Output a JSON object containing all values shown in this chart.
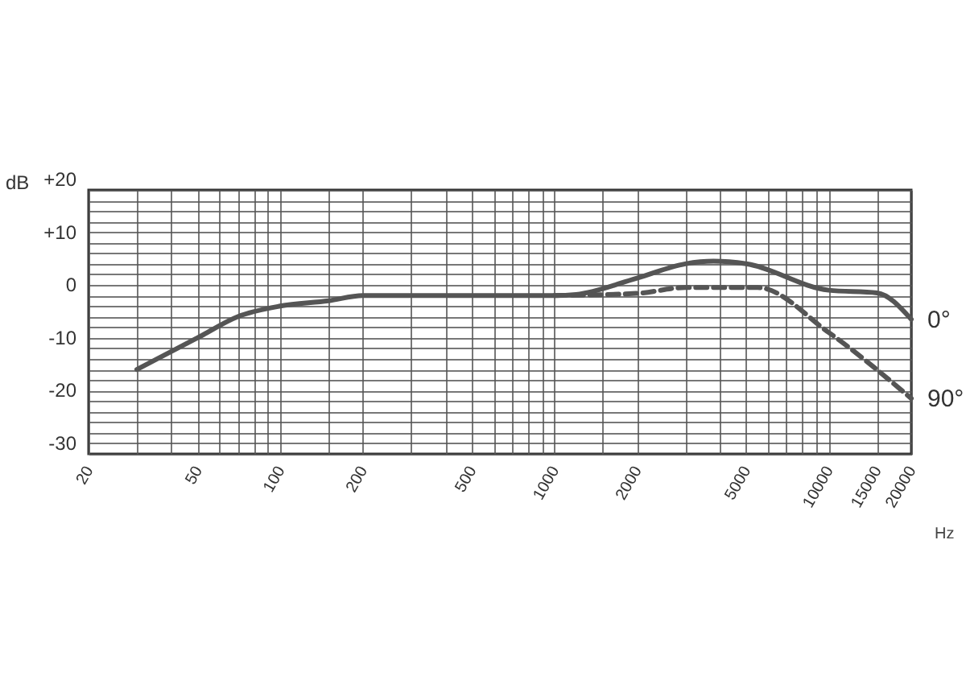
{
  "chart_data": {
    "type": "line",
    "xlabel": "Hz",
    "ylabel": "dB",
    "log": "x",
    "grid": true,
    "legend": false,
    "xlim": [
      20,
      20000
    ],
    "ylim": [
      -30,
      20
    ],
    "xticks": [
      20,
      {
        "value": 30,
        "label": null
      },
      {
        "value": 40,
        "label": null
      },
      50,
      {
        "value": 60,
        "label": null
      },
      {
        "value": 70,
        "label": null
      },
      {
        "value": 80,
        "label": null
      },
      {
        "value": 90,
        "label": null
      },
      100,
      {
        "value": 150,
        "label": null
      },
      200,
      {
        "value": 300,
        "label": null
      },
      {
        "value": 400,
        "label": null
      },
      500,
      {
        "value": 600,
        "label": null
      },
      {
        "value": 700,
        "label": null
      },
      {
        "value": 800,
        "label": null
      },
      {
        "value": 900,
        "label": null
      },
      1000,
      {
        "value": 1500,
        "label": null
      },
      2000,
      {
        "value": 3000,
        "label": null
      },
      {
        "value": 4000,
        "label": null
      },
      5000,
      {
        "value": 6000,
        "label": null
      },
      {
        "value": 7000,
        "label": null
      },
      {
        "value": 8000,
        "label": null
      },
      {
        "value": 9000,
        "label": null
      },
      10000,
      15000,
      20000
    ],
    "yticks": [
      -30,
      {
        "value": -28,
        "label": null
      },
      {
        "value": -26,
        "label": null
      },
      {
        "value": -24,
        "label": null
      },
      {
        "value": -22,
        "label": null
      },
      -20,
      {
        "value": -18,
        "label": null
      },
      {
        "value": -16,
        "label": null
      },
      {
        "value": -14,
        "label": null
      },
      {
        "value": -12,
        "label": null
      },
      -10,
      {
        "value": -8,
        "label": null
      },
      {
        "value": -6,
        "label": null
      },
      {
        "value": -4,
        "label": null
      },
      {
        "value": -2,
        "label": null
      },
      0,
      {
        "value": 2,
        "label": null
      },
      {
        "value": 4,
        "label": null
      },
      {
        "value": 6,
        "label": null
      },
      {
        "value": 8,
        "label": null
      },
      {
        "value": 10,
        "label": "+10"
      },
      {
        "value": 12,
        "label": null
      },
      {
        "value": 14,
        "label": null
      },
      {
        "value": 16,
        "label": null
      },
      {
        "value": 18,
        "label": null
      },
      {
        "value": 20,
        "label": "+20"
      }
    ],
    "series": [
      {
        "name": "0°",
        "color": "#555555",
        "line_style": "solid",
        "x": [
          30,
          50,
          70,
          100,
          150,
          200,
          1000,
          1200,
          2000,
          3000,
          3800,
          5000,
          10000,
          15000,
          20000
        ],
        "values": [
          -14,
          -8,
          -4,
          -2,
          -1,
          0,
          0,
          0.2,
          3.3,
          6,
          6.5,
          6,
          1,
          0.5,
          -4.5
        ]
      },
      {
        "name": "90°",
        "color": "#555555",
        "line_style": "dashed",
        "x": [
          1000,
          2000,
          3000,
          5000,
          5500,
          10000,
          20000
        ],
        "values": [
          0,
          0.4,
          1.5,
          1.5,
          1.5,
          -7,
          -19.5
        ]
      }
    ]
  }
}
